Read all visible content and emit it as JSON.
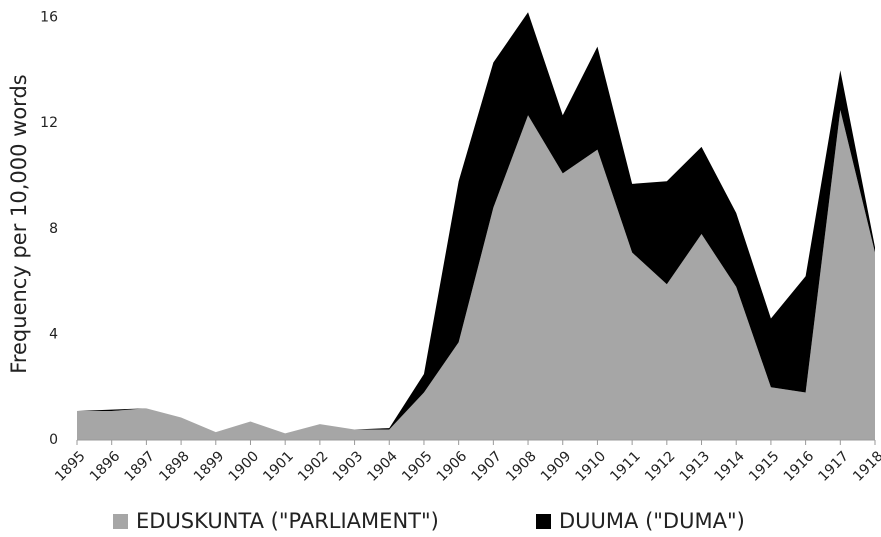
{
  "chart_data": {
    "type": "stacked-area",
    "y_label": "Frequency per 10,000 words",
    "categories": [
      "1895",
      "1896",
      "1897",
      "1898",
      "1899",
      "1900",
      "1901",
      "1902",
      "1903",
      "1904",
      "1905",
      "1906",
      "1907",
      "1908",
      "1909",
      "1910",
      "1911",
      "1912",
      "1913",
      "1914",
      "1915",
      "1916",
      "1917",
      "1918"
    ],
    "series": [
      {
        "name": "EDUSKUNTA (\"PARLIAMENT\")",
        "color": "#a6a6a6",
        "values": [
          1.1,
          1.1,
          1.2,
          0.85,
          0.3,
          0.7,
          0.25,
          0.6,
          0.4,
          0.4,
          1.8,
          3.7,
          8.8,
          12.3,
          10.1,
          11.0,
          7.1,
          5.9,
          7.8,
          5.8,
          2.0,
          1.8,
          12.5,
          7.1
        ]
      },
      {
        "name": "DUUMA (\"DUMA\")",
        "color": "#000000",
        "values": [
          0,
          0.05,
          0,
          0,
          0,
          0,
          0,
          0,
          0,
          0.05,
          0.7,
          6.1,
          5.5,
          3.9,
          2.2,
          3.9,
          2.6,
          3.9,
          3.3,
          2.8,
          2.6,
          4.4,
          1.5,
          0.2
        ]
      }
    ],
    "ylim": [
      0,
      16.4
    ],
    "yticks": [
      0,
      4,
      8,
      12,
      16
    ],
    "grid": false
  }
}
